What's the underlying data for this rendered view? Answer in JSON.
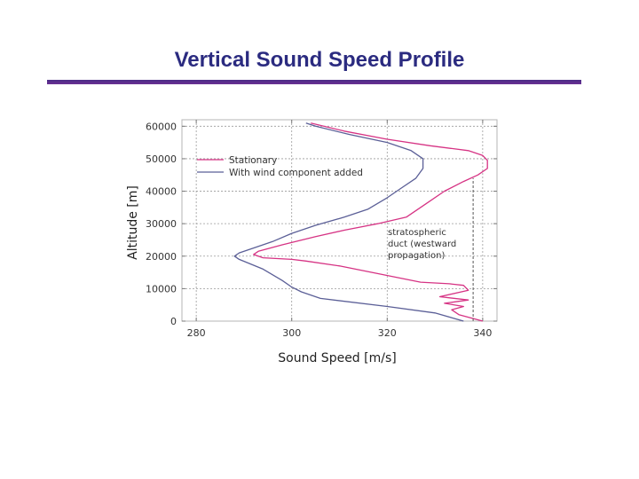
{
  "slide": {
    "title": "Vertical Sound Speed Profile"
  },
  "chart_data": {
    "type": "line",
    "xlabel": "Sound Speed [m/s]",
    "ylabel": "Altitude [m]",
    "xlim": [
      277,
      343
    ],
    "ylim": [
      0,
      62000
    ],
    "xticks": [
      280,
      300,
      320,
      340
    ],
    "yticks": [
      0,
      10000,
      20000,
      30000,
      40000,
      50000,
      60000
    ],
    "grid": true,
    "legend_position": "top-left",
    "colors": {
      "stationary": "#d63384",
      "wind": "#5b5f97",
      "grid": "#9a9a9a"
    },
    "series": [
      {
        "name": "Stationary",
        "color": "#d63384",
        "x": [
          340,
          335,
          333.5,
          336,
          332,
          337,
          331,
          337,
          336,
          333,
          327,
          310,
          303,
          300,
          294,
          292,
          293,
          298,
          305,
          311,
          318,
          324,
          328,
          332,
          336,
          339,
          341,
          341,
          340,
          337,
          329,
          320,
          311,
          304
        ],
        "y": [
          0,
          2000,
          3500,
          4500,
          5500,
          6500,
          7500,
          9500,
          11000,
          11500,
          12000,
          17000,
          18500,
          19000,
          19500,
          20500,
          21500,
          23500,
          26000,
          28000,
          30000,
          32000,
          36000,
          40000,
          43000,
          45000,
          47000,
          49500,
          51000,
          52500,
          54000,
          56000,
          58500,
          61000
        ]
      },
      {
        "name": "With wind component added",
        "color": "#5b5f97",
        "x": [
          336,
          330,
          320,
          306,
          302,
          300,
          298,
          294,
          289,
          288,
          289,
          292,
          296,
          300,
          305,
          311,
          316,
          320,
          323,
          326,
          327.5,
          327.5,
          325,
          320,
          312,
          305,
          303
        ],
        "y": [
          0,
          2500,
          4500,
          7000,
          9000,
          10500,
          12500,
          16000,
          19000,
          20000,
          21000,
          22500,
          24500,
          27000,
          29500,
          32000,
          34500,
          38000,
          41000,
          44000,
          47000,
          50000,
          52500,
          55000,
          57500,
          60000,
          61000
        ]
      }
    ],
    "annotations": [
      {
        "lines": [
          "stratospheric",
          "duct (westward",
          "propagation)"
        ]
      }
    ],
    "guide_line": {
      "x": 338,
      "y_from": 0,
      "y_to": 44000
    }
  }
}
